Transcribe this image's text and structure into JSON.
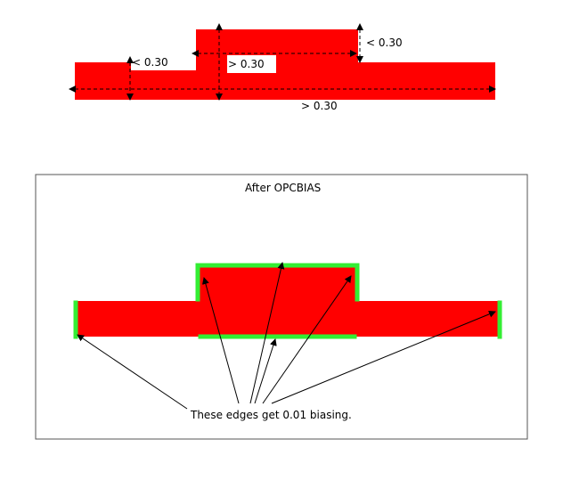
{
  "top_diagram": {
    "dimension_labels": {
      "left_width": "< 0.30",
      "center_width": "> 0.30",
      "right_height": "< 0.30",
      "bottom_width": "> 0.30"
    }
  },
  "bottom_panel": {
    "title": "After OPCBIAS",
    "annotation": "These edges get 0.01 biasing."
  },
  "colors": {
    "shape_fill": "#ff0000",
    "biased_edge": "#33ee33",
    "dimension_line": "#000000",
    "panel_border": "#555555"
  }
}
